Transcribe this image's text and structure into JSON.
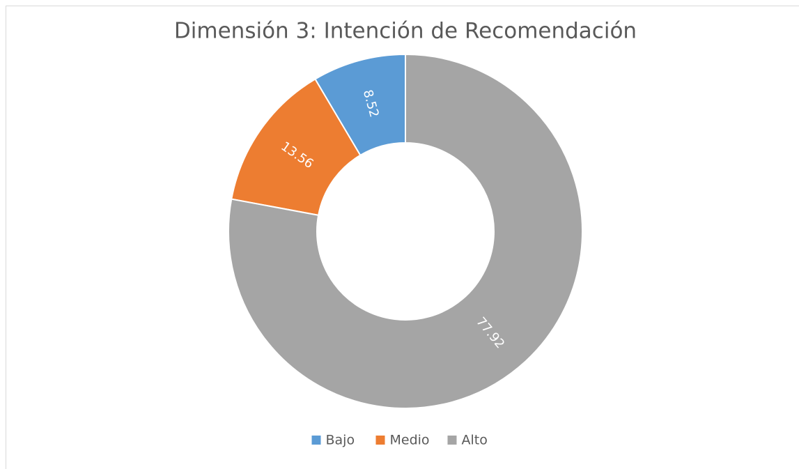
{
  "chart_data": {
    "type": "doughnut",
    "title": "Dimensión 3: Intención de Recomendación",
    "categories": [
      "Bajo",
      "Medio",
      "Alto"
    ],
    "values": [
      8.52,
      13.56,
      77.92
    ],
    "colors": [
      "#5b9bd5",
      "#ed7d31",
      "#a5a5a5"
    ],
    "legend": "bottom"
  }
}
